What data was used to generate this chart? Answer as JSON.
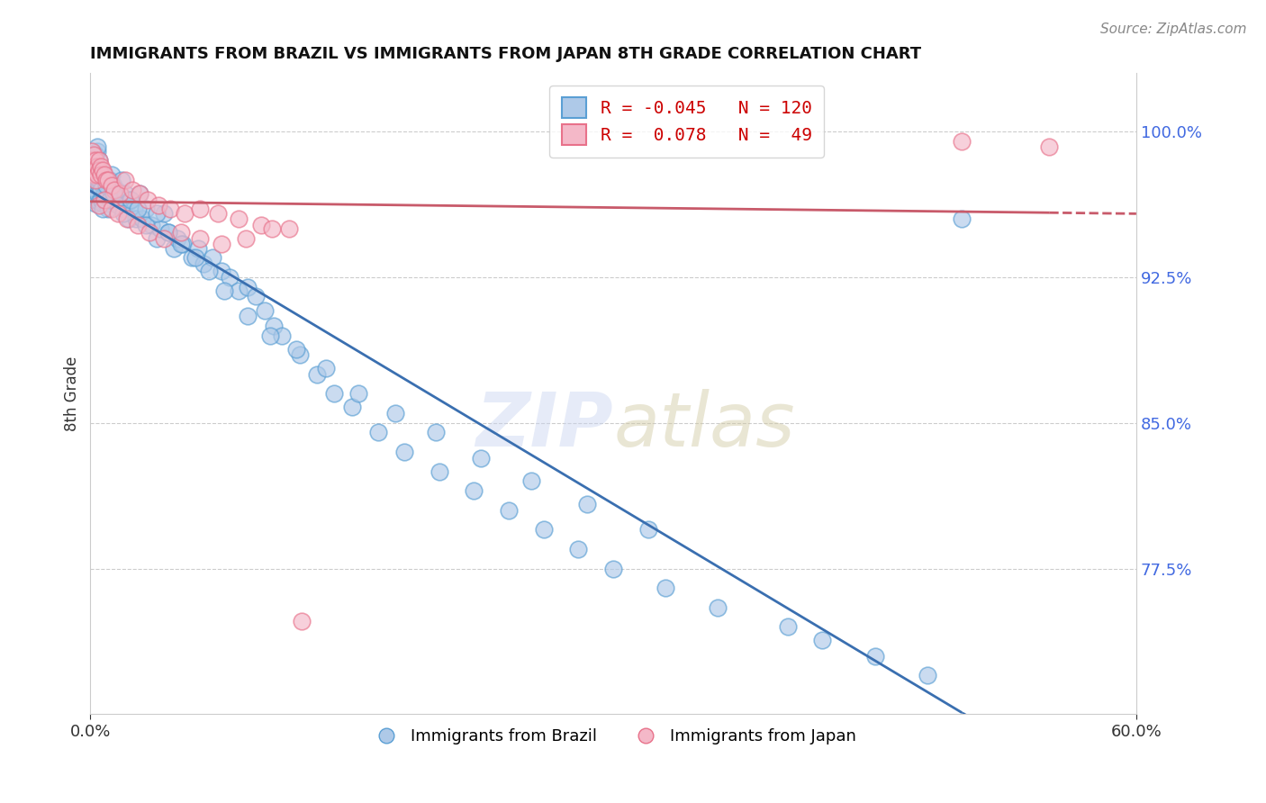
{
  "title": "IMMIGRANTS FROM BRAZIL VS IMMIGRANTS FROM JAPAN 8TH GRADE CORRELATION CHART",
  "source_text": "Source: ZipAtlas.com",
  "ylabel": "8th Grade",
  "xlim": [
    0.0,
    0.6
  ],
  "ylim": [
    0.7,
    1.03
  ],
  "yticks": [
    0.775,
    0.85,
    0.925,
    1.0
  ],
  "ytick_labels": [
    "77.5%",
    "85.0%",
    "92.5%",
    "100.0%"
  ],
  "xticks": [
    0.0,
    0.6
  ],
  "xtick_labels": [
    "0.0%",
    "60.0%"
  ],
  "brazil_facecolor": "#aec9e8",
  "japan_facecolor": "#f4b8c8",
  "brazil_edgecolor": "#5a9fd4",
  "japan_edgecolor": "#e8718a",
  "brazil_line_color": "#3a6fb0",
  "japan_line_color": "#c85a6a",
  "legend_brazil_label": "R = -0.045   N = 120",
  "legend_japan_label": "R =  0.078   N =  49",
  "legend_title_brazil": "Immigrants from Brazil",
  "legend_title_japan": "Immigrants from Japan",
  "brazil_x": [
    0.001,
    0.001,
    0.001,
    0.002,
    0.002,
    0.002,
    0.002,
    0.003,
    0.003,
    0.003,
    0.003,
    0.004,
    0.004,
    0.004,
    0.004,
    0.005,
    0.005,
    0.005,
    0.005,
    0.006,
    0.006,
    0.006,
    0.007,
    0.007,
    0.007,
    0.008,
    0.008,
    0.009,
    0.009,
    0.01,
    0.01,
    0.011,
    0.011,
    0.012,
    0.012,
    0.013,
    0.014,
    0.015,
    0.016,
    0.017,
    0.018,
    0.019,
    0.02,
    0.021,
    0.022,
    0.023,
    0.025,
    0.026,
    0.028,
    0.03,
    0.032,
    0.035,
    0.038,
    0.04,
    0.042,
    0.045,
    0.048,
    0.05,
    0.053,
    0.058,
    0.062,
    0.065,
    0.07,
    0.075,
    0.08,
    0.085,
    0.09,
    0.095,
    0.1,
    0.105,
    0.11,
    0.12,
    0.13,
    0.14,
    0.15,
    0.165,
    0.18,
    0.2,
    0.22,
    0.24,
    0.26,
    0.28,
    0.3,
    0.33,
    0.36,
    0.4,
    0.42,
    0.45,
    0.48,
    0.5,
    0.003,
    0.004,
    0.005,
    0.006,
    0.007,
    0.009,
    0.011,
    0.013,
    0.016,
    0.019,
    0.023,
    0.027,
    0.032,
    0.038,
    0.045,
    0.052,
    0.06,
    0.068,
    0.077,
    0.09,
    0.103,
    0.118,
    0.135,
    0.154,
    0.175,
    0.198,
    0.224,
    0.253,
    0.285,
    0.32
  ],
  "brazil_y": [
    0.98,
    0.975,
    0.97,
    0.985,
    0.978,
    0.972,
    0.965,
    0.982,
    0.976,
    0.97,
    0.963,
    0.99,
    0.98,
    0.975,
    0.968,
    0.985,
    0.978,
    0.972,
    0.964,
    0.98,
    0.974,
    0.965,
    0.978,
    0.972,
    0.963,
    0.975,
    0.968,
    0.97,
    0.963,
    0.968,
    0.96,
    0.975,
    0.965,
    0.978,
    0.968,
    0.972,
    0.965,
    0.97,
    0.963,
    0.968,
    0.975,
    0.96,
    0.968,
    0.963,
    0.955,
    0.965,
    0.96,
    0.955,
    0.968,
    0.955,
    0.96,
    0.952,
    0.945,
    0.95,
    0.958,
    0.948,
    0.94,
    0.945,
    0.942,
    0.935,
    0.94,
    0.932,
    0.935,
    0.928,
    0.925,
    0.918,
    0.92,
    0.915,
    0.908,
    0.9,
    0.895,
    0.885,
    0.875,
    0.865,
    0.858,
    0.845,
    0.835,
    0.825,
    0.815,
    0.805,
    0.795,
    0.785,
    0.775,
    0.765,
    0.755,
    0.745,
    0.738,
    0.73,
    0.72,
    0.955,
    0.988,
    0.992,
    0.975,
    0.97,
    0.96,
    0.972,
    0.965,
    0.968,
    0.962,
    0.958,
    0.965,
    0.96,
    0.952,
    0.958,
    0.948,
    0.942,
    0.935,
    0.928,
    0.918,
    0.905,
    0.895,
    0.888,
    0.878,
    0.865,
    0.855,
    0.845,
    0.832,
    0.82,
    0.808,
    0.795
  ],
  "japan_x": [
    0.001,
    0.001,
    0.002,
    0.002,
    0.002,
    0.003,
    0.003,
    0.003,
    0.004,
    0.004,
    0.005,
    0.005,
    0.006,
    0.006,
    0.007,
    0.008,
    0.009,
    0.01,
    0.012,
    0.014,
    0.017,
    0.02,
    0.024,
    0.028,
    0.033,
    0.039,
    0.046,
    0.054,
    0.063,
    0.073,
    0.085,
    0.098,
    0.114,
    0.5,
    0.55,
    0.005,
    0.008,
    0.012,
    0.016,
    0.021,
    0.027,
    0.034,
    0.042,
    0.052,
    0.063,
    0.075,
    0.089,
    0.104,
    0.121
  ],
  "japan_y": [
    0.99,
    0.985,
    0.988,
    0.982,
    0.978,
    0.985,
    0.98,
    0.975,
    0.982,
    0.978,
    0.985,
    0.98,
    0.982,
    0.978,
    0.98,
    0.978,
    0.975,
    0.975,
    0.972,
    0.97,
    0.968,
    0.975,
    0.97,
    0.968,
    0.965,
    0.962,
    0.96,
    0.958,
    0.96,
    0.958,
    0.955,
    0.952,
    0.95,
    0.995,
    0.992,
    0.962,
    0.965,
    0.96,
    0.958,
    0.955,
    0.952,
    0.948,
    0.945,
    0.948,
    0.945,
    0.942,
    0.945,
    0.95,
    0.748
  ]
}
